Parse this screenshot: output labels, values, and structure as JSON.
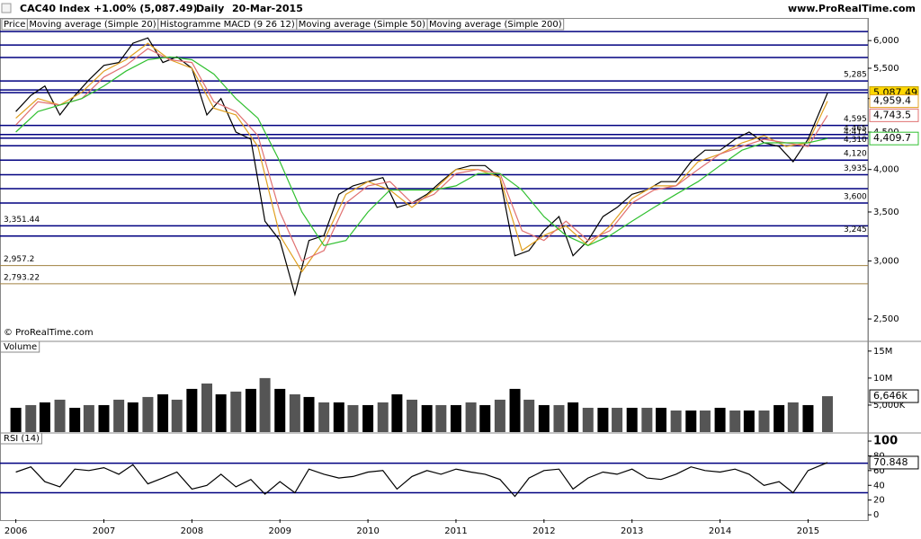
{
  "header": {
    "title": "CAC40 Index",
    "change": "+1.00% (5,087.49)",
    "period": "Daily",
    "date": "20-Mar-2015",
    "site": "www.ProRealTime.com",
    "watermark": "© ProRealTime.com"
  },
  "chart_data": [
    {
      "type": "line",
      "log_scale": true,
      "xlim": [
        2005.82,
        2015.68
      ],
      "xticks": [
        2006,
        2007,
        2008,
        2009,
        2010,
        2011,
        2012,
        2013,
        2014,
        2015
      ],
      "ylim": [
        2330,
        6210
      ],
      "yticks": [
        {
          "value": 2500,
          "label": "2,500"
        },
        {
          "value": 3000,
          "label": "3,000"
        },
        {
          "value": 3500,
          "label": "3,500"
        },
        {
          "value": 4000,
          "label": "4,000"
        },
        {
          "value": 4500,
          "label": "4,500"
        },
        {
          "value": 5000,
          "label": "5,000"
        },
        {
          "value": 5500,
          "label": "5,500"
        },
        {
          "value": 6000,
          "label": "6,000"
        }
      ],
      "levels": [
        {
          "value": 6172,
          "color": "#000080"
        },
        {
          "value": 5916,
          "color": "#000080"
        },
        {
          "value": 5690,
          "color": "#000080"
        },
        {
          "value": 5285,
          "label": "5,285",
          "side": "right",
          "color": "#000080"
        },
        {
          "value": 5137,
          "color": "#000080"
        },
        {
          "value": 5094,
          "color": "#000080"
        },
        {
          "value": 4595,
          "label": "4,595",
          "side": "right",
          "color": "#000080"
        },
        {
          "value": 4465,
          "label": "4,465",
          "side": "right",
          "color": "#000080"
        },
        {
          "value": 4415,
          "label": "4,415",
          "side": "right",
          "color": "#000080"
        },
        {
          "value": 4310,
          "label": "4,310",
          "side": "right",
          "color": "#000080"
        },
        {
          "value": 4120,
          "label": "4,120",
          "side": "right",
          "color": "#000080"
        },
        {
          "value": 3935,
          "label": "3,935",
          "side": "right",
          "color": "#000080"
        },
        {
          "value": 3766,
          "color": "#000080"
        },
        {
          "value": 3600,
          "label": "3,600",
          "side": "right",
          "color": "#000080"
        },
        {
          "value": 3351.44,
          "label": "3,351.44",
          "side": "left",
          "color": "#000080"
        },
        {
          "value": 3245,
          "label": "3,245",
          "side": "right",
          "color": "#000080"
        },
        {
          "value": 2957.2,
          "label": "2,957.2",
          "side": "left",
          "color": "#a08040"
        },
        {
          "value": 2793.22,
          "label": "2,793.22",
          "side": "left",
          "color": "#a08040"
        }
      ],
      "series": [
        {
          "name": "Price",
          "color": "#000000",
          "x": [
            2006,
            2006.17,
            2006.33,
            2006.5,
            2006.67,
            2006.83,
            2007,
            2007.17,
            2007.33,
            2007.5,
            2007.67,
            2007.83,
            2008,
            2008.17,
            2008.33,
            2008.5,
            2008.67,
            2008.83,
            2009,
            2009.17,
            2009.33,
            2009.5,
            2009.67,
            2009.83,
            2010,
            2010.17,
            2010.33,
            2010.5,
            2010.67,
            2010.83,
            2011,
            2011.17,
            2011.33,
            2011.5,
            2011.67,
            2011.83,
            2012,
            2012.17,
            2012.33,
            2012.5,
            2012.67,
            2012.83,
            2013,
            2013.17,
            2013.33,
            2013.5,
            2013.67,
            2013.83,
            2014,
            2014.17,
            2014.33,
            2014.5,
            2014.67,
            2014.83,
            2015,
            2015.22
          ],
          "values": [
            4800,
            5050,
            5200,
            4750,
            5050,
            5300,
            5550,
            5600,
            5950,
            6050,
            5600,
            5700,
            5500,
            4750,
            5000,
            4500,
            4400,
            3400,
            3200,
            2700,
            3200,
            3250,
            3700,
            3800,
            3850,
            3900,
            3550,
            3600,
            3700,
            3850,
            4000,
            4050,
            4050,
            3900,
            3050,
            3100,
            3300,
            3450,
            3050,
            3200,
            3450,
            3550,
            3700,
            3750,
            3850,
            3850,
            4100,
            4250,
            4250,
            4400,
            4500,
            4350,
            4300,
            4100,
            4400,
            5087.49
          ],
          "current": {
            "value": 5087.49,
            "label": "5,087.49"
          }
        },
        {
          "name": "Moving average (Simple 20)",
          "color": "#e0a020",
          "x": [
            2006,
            2006.25,
            2006.5,
            2006.75,
            2007,
            2007.25,
            2007.5,
            2007.75,
            2008,
            2008.25,
            2008.5,
            2008.75,
            2009,
            2009.25,
            2009.5,
            2009.75,
            2010,
            2010.25,
            2010.5,
            2010.75,
            2011,
            2011.25,
            2011.5,
            2011.75,
            2012,
            2012.25,
            2012.5,
            2012.75,
            2013,
            2013.25,
            2013.5,
            2013.75,
            2014,
            2014.25,
            2014.5,
            2014.75,
            2015,
            2015.22
          ],
          "values": [
            4700,
            5000,
            4900,
            5100,
            5450,
            5650,
            5950,
            5650,
            5500,
            4850,
            4750,
            4300,
            3250,
            2900,
            3200,
            3700,
            3850,
            3750,
            3550,
            3750,
            4000,
            4000,
            3900,
            3100,
            3250,
            3350,
            3150,
            3350,
            3650,
            3800,
            3800,
            4100,
            4200,
            4350,
            4450,
            4300,
            4350,
            4959.4
          ],
          "current": {
            "value": 4959.4,
            "label": "4,959.4"
          }
        },
        {
          "name": "Histogramme MACD (9 26 12)",
          "color": "#000000"
        },
        {
          "name": "Moving average (Simple 50)",
          "color": "#e07070",
          "x": [
            2006,
            2006.25,
            2006.5,
            2006.75,
            2007,
            2007.25,
            2007.5,
            2007.75,
            2008,
            2008.25,
            2008.5,
            2008.75,
            2009,
            2009.25,
            2009.5,
            2009.75,
            2010,
            2010.25,
            2010.5,
            2010.75,
            2011,
            2011.25,
            2011.5,
            2011.75,
            2012,
            2012.25,
            2012.5,
            2012.75,
            2013,
            2013.25,
            2013.5,
            2013.75,
            2014,
            2014.25,
            2014.5,
            2014.75,
            2015,
            2015.22
          ],
          "values": [
            4600,
            4950,
            4900,
            5000,
            5350,
            5550,
            5850,
            5650,
            5600,
            4950,
            4800,
            4450,
            3500,
            3000,
            3100,
            3600,
            3800,
            3850,
            3600,
            3700,
            3950,
            4000,
            3950,
            3300,
            3200,
            3400,
            3200,
            3300,
            3600,
            3750,
            3800,
            4000,
            4200,
            4300,
            4400,
            4350,
            4300,
            4743.5
          ],
          "current": {
            "value": 4743.5,
            "label": "4,743.5"
          }
        },
        {
          "name": "Moving average (Simple 200)",
          "color": "#30c030",
          "x": [
            2006,
            2006.25,
            2006.5,
            2006.75,
            2007,
            2007.25,
            2007.5,
            2007.75,
            2008,
            2008.25,
            2008.5,
            2008.75,
            2009,
            2009.25,
            2009.5,
            2009.75,
            2010,
            2010.25,
            2010.5,
            2010.75,
            2011,
            2011.25,
            2011.5,
            2011.75,
            2012,
            2012.25,
            2012.5,
            2012.75,
            2013,
            2013.25,
            2013.5,
            2013.75,
            2014,
            2014.25,
            2014.5,
            2014.75,
            2015,
            2015.22
          ],
          "values": [
            4500,
            4800,
            4900,
            5000,
            5200,
            5450,
            5650,
            5700,
            5650,
            5400,
            5000,
            4700,
            4100,
            3500,
            3150,
            3200,
            3500,
            3750,
            3750,
            3750,
            3800,
            3950,
            3950,
            3750,
            3450,
            3250,
            3150,
            3250,
            3400,
            3550,
            3700,
            3850,
            4050,
            4250,
            4350,
            4350,
            4350,
            4409.7
          ],
          "current": {
            "value": 4409.7,
            "label": "4,409.7"
          }
        }
      ]
    },
    {
      "type": "bar",
      "title": "Volume",
      "xlim": [
        2005.82,
        2015.68
      ],
      "ylim": [
        0,
        16800000
      ],
      "yticks": [
        {
          "value": 5000000,
          "label": "5,000K"
        },
        {
          "value": 10000000,
          "label": "10M"
        },
        {
          "value": 15000000,
          "label": "15M"
        }
      ],
      "series": [
        {
          "color": "#000000",
          "x": [
            2006,
            2006.17,
            2006.33,
            2006.5,
            2006.67,
            2006.83,
            2007,
            2007.17,
            2007.33,
            2007.5,
            2007.67,
            2007.83,
            2008,
            2008.17,
            2008.33,
            2008.5,
            2008.67,
            2008.83,
            2009,
            2009.17,
            2009.33,
            2009.5,
            2009.67,
            2009.83,
            2010,
            2010.17,
            2010.33,
            2010.5,
            2010.67,
            2010.83,
            2011,
            2011.17,
            2011.33,
            2011.5,
            2011.67,
            2011.83,
            2012,
            2012.17,
            2012.33,
            2012.5,
            2012.67,
            2012.83,
            2013,
            2013.17,
            2013.33,
            2013.5,
            2013.67,
            2013.83,
            2014,
            2014.17,
            2014.33,
            2014.5,
            2014.67,
            2014.83,
            2015,
            2015.22
          ],
          "values": [
            4500000,
            5000000,
            5500000,
            6000000,
            4500000,
            5000000,
            5000000,
            6000000,
            5500000,
            6500000,
            7000000,
            6000000,
            8000000,
            9000000,
            7000000,
            7500000,
            8000000,
            10000000,
            8000000,
            7000000,
            6500000,
            5500000,
            5500000,
            5000000,
            5000000,
            5500000,
            7000000,
            6000000,
            5000000,
            5000000,
            5000000,
            5500000,
            5000000,
            6000000,
            8000000,
            6000000,
            5000000,
            5000000,
            5500000,
            4500000,
            4500000,
            4500000,
            4500000,
            4500000,
            4500000,
            4000000,
            4000000,
            4000000,
            4500000,
            4000000,
            4000000,
            4000000,
            5000000,
            5500000,
            5000000,
            6646000
          ],
          "current": {
            "value": 6646000,
            "label": "6,646k"
          }
        }
      ]
    },
    {
      "type": "line",
      "title": "RSI (14)",
      "xlim": [
        2005.82,
        2015.68
      ],
      "ylim": [
        -6,
        111
      ],
      "yticks": [
        0,
        20,
        40,
        60,
        80,
        100
      ],
      "levels": [
        {
          "value": 70,
          "color": "#000080"
        },
        {
          "value": 30,
          "color": "#000080"
        }
      ],
      "series": [
        {
          "color": "#000000",
          "x": [
            2006,
            2006.17,
            2006.33,
            2006.5,
            2006.67,
            2006.83,
            2007,
            2007.17,
            2007.33,
            2007.5,
            2007.67,
            2007.83,
            2008,
            2008.17,
            2008.33,
            2008.5,
            2008.67,
            2008.83,
            2009,
            2009.17,
            2009.33,
            2009.5,
            2009.67,
            2009.83,
            2010,
            2010.17,
            2010.33,
            2010.5,
            2010.67,
            2010.83,
            2011,
            2011.17,
            2011.33,
            2011.5,
            2011.67,
            2011.83,
            2012,
            2012.17,
            2012.33,
            2012.5,
            2012.67,
            2012.83,
            2013,
            2013.17,
            2013.33,
            2013.5,
            2013.67,
            2013.83,
            2014,
            2014.17,
            2014.33,
            2014.5,
            2014.67,
            2014.83,
            2015,
            2015.22
          ],
          "values": [
            58,
            65,
            45,
            38,
            62,
            60,
            64,
            55,
            68,
            42,
            50,
            58,
            35,
            40,
            55,
            38,
            48,
            28,
            45,
            30,
            62,
            55,
            50,
            52,
            58,
            60,
            35,
            52,
            60,
            55,
            62,
            58,
            55,
            48,
            25,
            50,
            60,
            62,
            35,
            50,
            58,
            55,
            62,
            50,
            48,
            55,
            65,
            60,
            58,
            62,
            55,
            40,
            45,
            30,
            60,
            70.848
          ],
          "current": {
            "value": 70.848,
            "label": "70.848"
          }
        }
      ]
    }
  ]
}
